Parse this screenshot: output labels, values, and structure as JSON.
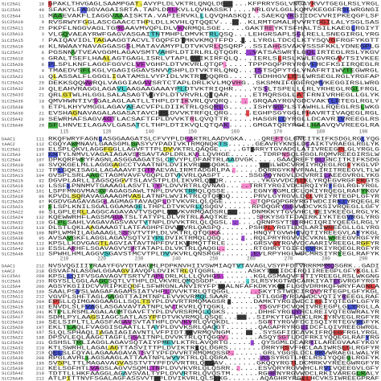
{
  "blocks": [
    {
      "rows": [
        [
          "SLC25A1",
          "18",
          "GPAKLTHVGAGLSAAMPGAT.AVYPLDLVKTRLQNQLDE.....KFPRRYSGLVNGAYRVVTGEGLRSLYRGL"
        ],
        [
          "SLC25A3",
          "49",
          "SFAKYLFAGGVAGAISRTA.TAPLDRLKVLLQVHASSKT....NRLGVLGGLKQMVKEGGFRSLWRGNGI"
        ],
        [
          "SLC25A4",
          "11",
          "MAAEVAKFLIAGGVAAAISKTA.VAPIERVKLLLQVQHASKQI..SAEKQYKGIIDCVVRIPKEQGFLSF"
        ],
        [
          "SLC25A10",
          "9",
          "RVSRWYFGGLASCGAACCTHPLDLLKVHLQTQQEV......KLRMTGMALRVVRTDGILALYSGLSAS"
        ],
        [
          "SLC25A11",
          "25",
          "PKPFLNGGVAGLTGMGAAVMVQPLDLVKNRMQLSGE.....GAKTREYKTSFHALTSILKAEGLRGIYT"
        ],
        [
          "SLC25A13",
          "3",
          "VLGQVAEAYRWFGAGVASGAITNTMHPLDMVKTRLQSQ...LEHGRSAPLSGLRELLSNEGIRGLYRG"
        ],
        [
          "SLC25A15",
          "7",
          "PAIQAVIDLTAGAAGGTACVLTGQPFDTMKVKMQTFPD....LYRGLTDCCLKTYSQVGFRGFYKGTT"
        ],
        [
          "SLC25A16",
          "49",
          "KLNWAAYNAVAGGASGSLMATAVAMYPLDTVKVRLQSQRP..SSIAHGSVAKVSSSFKKLYDNEGPLG"
        ],
        [
          "SLC25A17",
          "8",
          "PGSNNVTVEAVGGMLAGAVSMTVAHPLDTIRLRLQTQGR...VATSASWRTLGQLIRTEGLRSLYKGV"
        ],
        [
          "SLC25A19",
          "6",
          "GRALTSEFLHAALAGTGAGLISRLVTAPLDVIKIRFQLQ...IERLSLRSLKWLEGVRGAVTSIVKEE"
        ],
        [
          "SLC25A20",
          "8",
          "PLSPLKNFLAGGFGGVCLVFVGHPLDTVKVRLQTQP.....TPPPGQPPRYRGVFHCFKSIIRQEGLR"
        ],
        [
          "SLC25A21",
          "4",
          "TMAEDVSFLKGLVGAGIGGAVSNVVSHPLDTVKTRLQNQ...ISTSQPYTGLVNAFRTIWVTEGWRGL"
        ],
        [
          "SLC25A22",
          "11",
          "QLASSALFLGGGLIGATAMSLVYPIDLVKTRLQQQRG.....TGDHHGVLRSLWRSEGLRGLYRGFAP"
        ],
        [
          "SLC25A24",
          "28",
          "DEKKSQQWWRQLVAGGIAGAVSRTCTAPLDRLKVLMQVHG..SKSMNIFGGFRQMVKEGGIRSLWRG"
        ],
        [
          "SLC25A32",
          "29",
          "QLEAHVRAGGLAGAVLAAGAAGAAAYPLDTVKTRIQHR....YSSLTSPELLLRLYRHEGLRGLFRGL"
        ],
        [
          "SLC25A33",
          "21",
          "QRLGTWLHLGGLSALASAGTVGYPLDTVRVRLQTQAR.....ETMQRSGLLATFRNIVRHEGLLGLYK"
        ],
        [
          "SLC25A36",
          "19",
          "QMVHWNTIVSGALAGLAATLLTHPLDTIKVRLQVQRQ.....GRQAAYRGVGDCVAKTLRTEGLRGLY"
        ],
        [
          "SLC25A38",
          "5",
          "ETPLKHYVMGGLAGAVAEACVFPLDIIKTRLQSQRLG.....ISHYNGPLSTAWHLLRQEGLRSLWKG"
        ],
        [
          "SLC25A39",
          "21",
          "EVSHAGNAVAGALAGASATAVCHPLDVVKTRFQLQRG.....EGHPSGYGGLFHAVRTIVAQEGLRGL"
        ],
        [
          "SLC25A42",
          "28",
          "SEWRHAFSAGVAGTLACSAFTFPLDVVKTRLQVQTTR.....HASGRLQYRGLLDCAVRIVREEGLRS"
        ],
        [
          "SLC25A46",
          "20",
          "SFLHNVEILAGAVLGASATCLTHPLDTIKVQLQTQAK.....GMGATQRYRGLLHAAVQVVREEGLRA"
        ]
      ],
      "ruler": [
        "115",
        "120",
        "140",
        "150",
        "160",
        "170",
        "180",
        "190"
      ]
    },
    {
      "rows": [
        [
          "bAAC1",
          "111",
          "RKQFWRYFAGNLASGGAAGATSLCFVYPLDFARTRLAADVGKA....QREFTGLGNCITKIFKSDGLRGLYQG"
        ],
        [
          "tAAC2",
          "112",
          "CGQYAWMNAVLGAASGMLGASYVYPADIVKTRMQNQKTS......GEAVRYKNSLDCAIKTVRAEGLRGLYK"
        ],
        [
          "SLC25A1",
          "109",
          "ELSPLQKVLAGGFGGLLAGVFTTPLDVVKTRLQAQGE.....GTGRRYTGVADCLATIVREEGPLGLYRGLG"
        ],
        [
          "SLC25A3",
          "137",
          "ENTYLNMVLVAGAIAGAVSRSAVTAPLDRLKVLLQVHGE.......TDRPNSQLFGGLRQMVREEGIRSLW"
        ],
        [
          "SLC25A4",
          "107",
          "DPKQRFWRYFAGNLASGGAAGATSLCFVYPLDFARTRLAADVGK.....GAAQREFTGLGNCITKIFKSDG"
        ],
        [
          "SLC25A10",
          "99",
          "SVQKGELMLLAGGGAGCCTVAATNPLDVIKVRLQSQGKL......YRGLWDCVRKIYRQEGLRGFYKGLVP"
        ],
        [
          "SLC25A11",
          "112",
          "TPLGQKISAGLLAGAAAVFIGTPAEVALIRMTADGRLPA......DQRRGYKNVFNALIRITREEGVLTLW"
        ],
        [
          "SLC25A13",
          "104",
          "GVSPLSRLAAGCTAGMVAVFVGQPLDTVKVRLQASPT......SSGPQYNGVLDCVRRILAEEGVRGLYKG"
        ],
        [
          "SLC25A15",
          "92",
          "DGVPLARLLIAGSQGGVTSLAVSTPLDLIKVRLQSQR........YKGVVDCAIKLYRQEGVRGFFKGTS"
        ],
        [
          "SLC25A16",
          "142",
          "LSSFLPNNMVTGAAAGLASVTLTYPLDVVRTRLQVNAG.....TRRTYRGIVDCFRQIYRTEGLRGFYRGL"
        ],
        [
          "SLC25A17",
          "101",
          "LSPFMNGVMASGFAGAGSAWLTNPLDVVKTRMQLQSSE......EGNYRGMLDCLQKIYRQEGLRAFYKGV"
        ],
        [
          "SLC25A19",
          "96",
          "KPVDLSQRAVAGAAAGMVASLATNPLWVIKTRLQTQPGQ.....PRVLGYRGVLDCLVRIYRTEGPLGFYR"
        ],
        [
          "SLC25A20",
          "97",
          "KGDVGAGAVAGGLAGMAGTAVAQPLDTVKVRLQLQGE.......TQPGQPGRYRGTWDCIRKIYRQEGLR"
        ],
        [
          "SLC25A21",
          "97",
          "ELSPLKNILSGALGGAMAGFLTHPLDTVKVRLQSQGV......RPDQGRYSGVWDCVKSIVRQEGLLGFY"
        ],
        [
          "SLC25A22",
          "98",
          "SLGPLERLLAGGCAGAVAVTVSQPLDVVKVRMQADSRL.....DNMKKYTGVVHCLREIVKEEGLRGLYK"
        ],
        [
          "SLC25A24",
          "132",
          "KQEWWRHFLAGSMAGATSLTATYPLDLVRTRLAAQTKE......SRKYSGTFDAIRKIYKTEGVRGLYRG"
        ],
        [
          "SLC25A32",
          "119",
          "GLPLSAHLVAGAVAGSVAVTVTNPLDVVKTRLQLQGSL......QRNPSYTSIRHCIQRIYQEEGLRGLY"
        ],
        [
          "SLC25A33",
          "110",
          "DLSTLQKLAAGAAAGTLATFAGHPFDVVKVRLQASPQ......PSHPLYRGTLDCLARIWREEGLLGLYRG"
        ],
        [
          "SLC25A36",
          "108",
          "NPLWMHILAGAAAGLSSSVTVTPLDLVKTRLQTQGKA.......HNQYTGVWHCVQTIYREEGVLAFYKGL"
        ],
        [
          "SLC25A38",
          "95",
          "AVSAVGKFLAGGLAGAVSQTVIYPLDVIKTRMQLQGQ.......RQLPRYRGVVDCVKNLWREEGVRGFYR"
        ],
        [
          "SLC25A39",
          "112",
          "KPSLLKDVGAGTLAGVIATAVTNPFDVIKVRMQTTRLE......GRSVGYRGVVDCAARIVREEGLRGFYR"
        ],
        [
          "SLC25A42",
          "119",
          "ESSLARHFLSGAVAGVVSRTATAPLDLVKTRLQAQGL.......RTGHRYTGIFDCVRKIYRQEGLRGFYR"
        ],
        [
          "SLC25A46",
          "112",
          "SPWHLHMLAGGVSGAVSTMCVTPLDVVKVRLQNSRGR.......EVLRPYHGLWDCMRSIYREEGLRAFYK"
        ]
      ],
      "ruler": [
        "210",
        "220",
        "230",
        "240",
        "250",
        "260",
        "270",
        "280",
        "290"
      ]
    },
    {
      "rows": [
        [
          "bAAC1",
          "212",
          "NVSVQGIIIYRAAYFGVYDTAKGMLPDPKNVHIIVSWMIAQTVTAVAGLVSYPFDTVRRRMMMQSGRK..GADI"
        ],
        [
          "tAAC2",
          "218",
          "GSVAFNLASGWLGGAAGVIAVQPLDVIKTRLQTQGRL.......ASKYTGLIDCFRQIIREEGPLGFYKGLLF"
        ],
        [
          "SLC25A1",
          "209",
          "KPSLLQIFVSGAVAGVTSRTVTAPLDRLKLLLQVHGS.......KGLGSMAQVFRTIYREEGLRSLWKGNG"
        ],
        [
          "SLC25A3",
          "233",
          "RGYSLLGGLAAGCSQTLVTHPLDLVKVRLQMQSGDP........SLRSYKGTWDCARKIYATEGVRGFYRGT"
        ],
        [
          "SLC25A4",
          "206",
          "AGSYKGIIDCVVRIPKEQGFLSFWRGNLANVIRYFPTQALNFAFKDKYKQIFLGGVDRHKQFWRYFAGNLA"
        ],
        [
          "SLC25A10",
          "199",
          "SAALPSVSLWAGAFAGAMSIATVHPLDVVKTRLQTQGGL......SKYTSTWDCIRQVYRTEGPLGFYKGL"
        ],
        [
          "SLC25A11",
          "212",
          "VGVPLSHFTAGLAAGGTTAIMTNPLEVVKVRMQLSAAR......DTLGGRYRGAWDCVQTIYREEGLRAF"
        ],
        [
          "SLC25A13",
          "204",
          "EPSLLQIMGAGGAAGLLSQLTSYPLDVVRTRMQMAGSR......DAMKTYRGIWDCIKSIYQTEGPLGFYR"
        ],
        [
          "SLC25A15",
          "192",
          "ENVDLSLFVAGLASGAVAVTATNPLWVIKVRLQTQGKL.......YSGVFDCVQKIVREEGPLGLYRGLLA"
        ],
        [
          "SLC25A16",
          "241",
          "KTPLLRSMLAGALAGMTGAVFTYPLDVVRSRMQLQGKS.......DHHFYRGLYRCLREIVQTEGWRALYR"
        ],
        [
          "SLC25A17",
          "201",
          "SDMLPYLAAGSIAGCSATLASYPFDTVKVRMQLQSQE.......SIPKYTGFWDCLRKIYRVEGLRGFYR"
        ],
        [
          "SLC25A19",
          "196",
          "SELSIPLTLLAGSFAGAVSVTATHPLDVVKVRLQVQKDL......SGRTYRGVFDCISQIYRTEGVRGFYK"
        ],
        [
          "SLC25A20",
          "197",
          "EKLTLAQLFVAGGISGAATLLTAYPLDVVKSRLQAQGT.......QAGAPRYRGLIDCFLQIVREEGWRGL"
        ],
        [
          "SLC25A21",
          "197",
          "SLQLSPHAQLIAGAIAGIAVNTLVFPIDTIRVRMQVNGM.......SYSGFIDCAVKIFRQEGFRGLYRGL"
        ],
        [
          "SLC25A22",
          "198",
          "DPSVLEQLAAGCTAGFLSSAITNPLDVVKTRLQTQGGV.......ASQYSGTLDCFRKIYQQEGLRAFYRG"
        ],
        [
          "SLC25A24",
          "231",
          "GSHSLTRLIAGGLAGAVSQTAIYPMEVLKTRLAVQRTG.......QYSGMLDCARRILAREGVAAFYKGY"
        ],
        [
          "SLC25A32",
          "219",
          "KTLSWRHLLAGALAGTTASVITTPLDVIKTRLQLDGRS.......DRRYRSVFHCLAAIWRSEGLRGFYR"
        ],
        [
          "SLC25A33",
          "210",
          "QELSLFQYALAGAAAGAVATSVTYPFDVVRTRMQMQSSP.......GRLYGGSLDCLRKVWRAEGLWALYR"
        ],
        [
          "SLC25A36",
          "208",
          "RPGLAVHLLAGSAAGLATTAATNPLWVVKTRLQLQGRA.......ASSYRGTLHCLRSIYQQEGLRGFYK"
        ],
        [
          "SLC25A38",
          "195",
          "SVSPLTTLMAGAVAGVASSTVTYPFDVVRTRLQTQAV.......GKQQYRGTLDCMRKVYREEGWRGFYR"
        ],
        [
          "SLC25A39",
          "212",
          "KELSGFHTLVAGSLAGVVSQMLTNPLDVVKVRLQLQSRR......ESVQRYRGVWHCLRVIVQEEGVLGFY"
        ],
        [
          "SLC25A42",
          "219",
          "TDTTLLHKFAAGGLAGAVSVALTYPLDVVRTRLQVQSTM......RGHRNYRGVWDCLRKIVAREGLRALY"
        ],
        [
          "SLC25A46",
          "212",
          "ATLPITTNVFSGALAGFASSVVTHPLDVIKVRLQLSEKG.......AQAGHRYRGLLHCVKSIWREEGPRAF"
        ]
      ]
    }
  ]
}
